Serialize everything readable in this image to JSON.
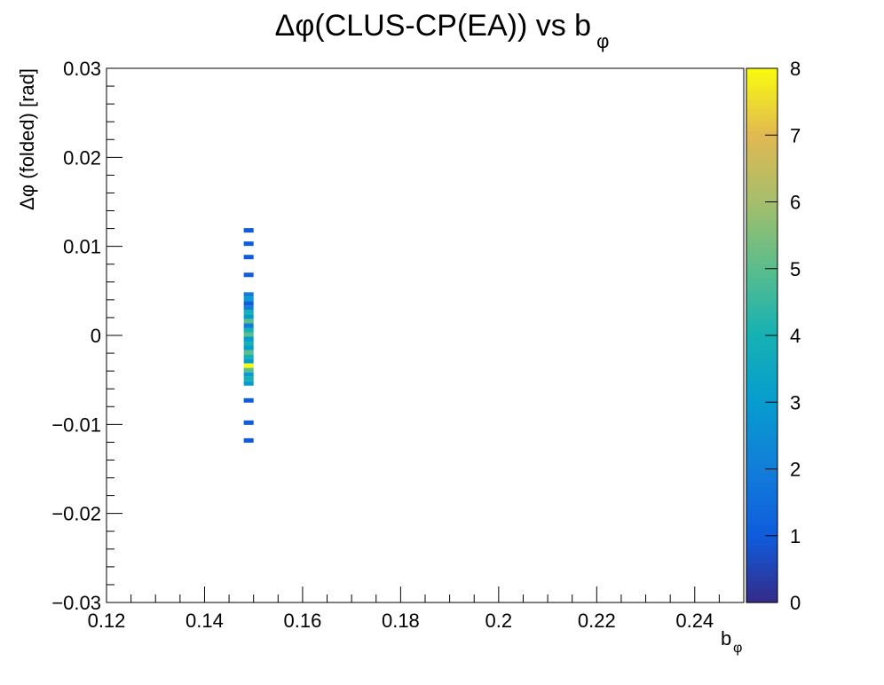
{
  "chart_data": {
    "type": "heatmap",
    "title": "Δφ(CLUS-CP(EA)) vs b",
    "title_subscript": "φ",
    "xlabel": "b",
    "xlabel_subscript": "φ",
    "ylabel": "Δφ (folded) [rad]",
    "xlim": [
      0.12,
      0.25
    ],
    "ylim": [
      -0.03,
      0.03
    ],
    "x_ticks": [
      0.12,
      0.14,
      0.16,
      0.18,
      0.2,
      0.22,
      0.24
    ],
    "x_tick_labels": [
      "0.12",
      "0.14",
      "0.16",
      "0.18",
      "0.2",
      "0.22",
      "0.24"
    ],
    "y_ticks": [
      -0.03,
      -0.02,
      -0.01,
      0,
      0.01,
      0.02,
      0.03
    ],
    "y_tick_labels": [
      "−0.03",
      "−0.02",
      "−0.01",
      "0",
      "0.01",
      "0.02",
      "0.03"
    ],
    "colorbar": {
      "min": 0,
      "max": 8,
      "ticks": [
        0,
        1,
        2,
        3,
        4,
        5,
        6,
        7,
        8
      ],
      "tick_labels": [
        "0",
        "1",
        "2",
        "3",
        "4",
        "5",
        "6",
        "7",
        "8"
      ]
    },
    "bin_width_x": 0.002,
    "bin_height_y": 0.0005,
    "cells": [
      {
        "x": 0.149,
        "y": 0.0118,
        "z": 1
      },
      {
        "x": 0.149,
        "y": 0.0103,
        "z": 1
      },
      {
        "x": 0.149,
        "y": 0.0088,
        "z": 1
      },
      {
        "x": 0.149,
        "y": 0.0068,
        "z": 1
      },
      {
        "x": 0.149,
        "y": 0.0046,
        "z": 2
      },
      {
        "x": 0.149,
        "y": 0.0041,
        "z": 3
      },
      {
        "x": 0.149,
        "y": 0.0036,
        "z": 1
      },
      {
        "x": 0.149,
        "y": 0.0031,
        "z": 2
      },
      {
        "x": 0.149,
        "y": 0.0026,
        "z": 4
      },
      {
        "x": 0.149,
        "y": 0.0021,
        "z": 3
      },
      {
        "x": 0.149,
        "y": 0.0016,
        "z": 5
      },
      {
        "x": 0.149,
        "y": 0.0011,
        "z": 2
      },
      {
        "x": 0.149,
        "y": 0.0006,
        "z": 4
      },
      {
        "x": 0.149,
        "y": 0.0001,
        "z": 5
      },
      {
        "x": 0.149,
        "y": -0.0004,
        "z": 3
      },
      {
        "x": 0.149,
        "y": -0.0009,
        "z": 4
      },
      {
        "x": 0.149,
        "y": -0.0014,
        "z": 3
      },
      {
        "x": 0.149,
        "y": -0.0019,
        "z": 5
      },
      {
        "x": 0.149,
        "y": -0.0024,
        "z": 4
      },
      {
        "x": 0.149,
        "y": -0.0029,
        "z": 3
      },
      {
        "x": 0.149,
        "y": -0.0034,
        "z": 8
      },
      {
        "x": 0.149,
        "y": -0.0039,
        "z": 5
      },
      {
        "x": 0.149,
        "y": -0.0044,
        "z": 3
      },
      {
        "x": 0.149,
        "y": -0.0049,
        "z": 4
      },
      {
        "x": 0.149,
        "y": -0.0054,
        "z": 3
      },
      {
        "x": 0.149,
        "y": -0.0073,
        "z": 1
      },
      {
        "x": 0.149,
        "y": -0.0098,
        "z": 1
      },
      {
        "x": 0.149,
        "y": -0.0118,
        "z": 1
      }
    ]
  }
}
